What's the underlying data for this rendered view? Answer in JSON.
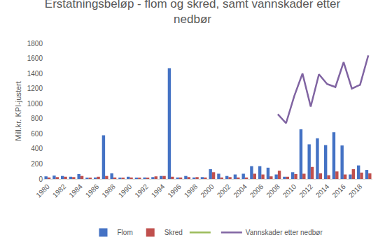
{
  "chart_data": {
    "type": "bar",
    "title": "Erstatningsbeløp - flom og skred, samt vannskader etter nedbør",
    "y_label": "Mill.kr. KPI-justert",
    "categories": [
      "1980",
      null,
      "1982",
      null,
      "1984",
      null,
      "1986",
      null,
      "1988",
      null,
      "1990",
      null,
      "1992",
      null,
      "1994",
      null,
      "1996",
      null,
      "1998",
      null,
      "2000",
      null,
      "2002",
      null,
      "2004",
      null,
      "2006",
      null,
      "2008",
      null,
      "2010",
      null,
      "2012",
      null,
      "2014",
      null,
      "2016",
      null,
      "2018",
      null
    ],
    "series": [
      {
        "name": "Flom",
        "type": "bar",
        "color": "#4472C4",
        "values": [
          35,
          45,
          40,
          30,
          65,
          10,
          20,
          580,
          75,
          15,
          30,
          10,
          20,
          25,
          40,
          1470,
          20,
          40,
          20,
          25,
          130,
          70,
          40,
          60,
          70,
          170,
          170,
          150,
          60,
          30,
          90,
          660,
          460,
          540,
          450,
          620,
          445,
          60,
          180,
          120
        ]
      },
      {
        "name": "Skred",
        "type": "bar",
        "color": "#C0504D",
        "values": [
          20,
          25,
          30,
          25,
          40,
          10,
          30,
          40,
          20,
          15,
          20,
          10,
          15,
          35,
          40,
          30,
          20,
          25,
          25,
          20,
          90,
          20,
          25,
          20,
          20,
          70,
          60,
          35,
          110,
          30,
          65,
          70,
          160,
          75,
          50,
          100,
          60,
          130,
          85,
          75
        ]
      },
      {
        "name": null,
        "type": "line",
        "color": "#9BBB59",
        "values": [
          null,
          null,
          null,
          null,
          null,
          null,
          null,
          null,
          null,
          null,
          null,
          null,
          null,
          null,
          null,
          null,
          null,
          null,
          null,
          null,
          null,
          null,
          null,
          null,
          null,
          null,
          null,
          null,
          null,
          null,
          null,
          null,
          null,
          null,
          null,
          null,
          null,
          null,
          null,
          null
        ]
      },
      {
        "name": "Vannskader etter nedbør",
        "type": "line",
        "color": "#8064A2",
        "values": [
          null,
          null,
          null,
          null,
          null,
          null,
          null,
          null,
          null,
          null,
          null,
          null,
          null,
          null,
          null,
          null,
          null,
          null,
          null,
          null,
          null,
          null,
          null,
          null,
          null,
          null,
          null,
          null,
          860,
          740,
          1100,
          1400,
          960,
          1390,
          1260,
          1220,
          1550,
          1200,
          1250,
          1640
        ]
      }
    ],
    "ylim": [
      0,
      1800
    ],
    "yticks": [
      0,
      200,
      400,
      600,
      800,
      1000,
      1200,
      1400,
      1600,
      1800
    ],
    "grid": false,
    "legend": "bottom"
  }
}
